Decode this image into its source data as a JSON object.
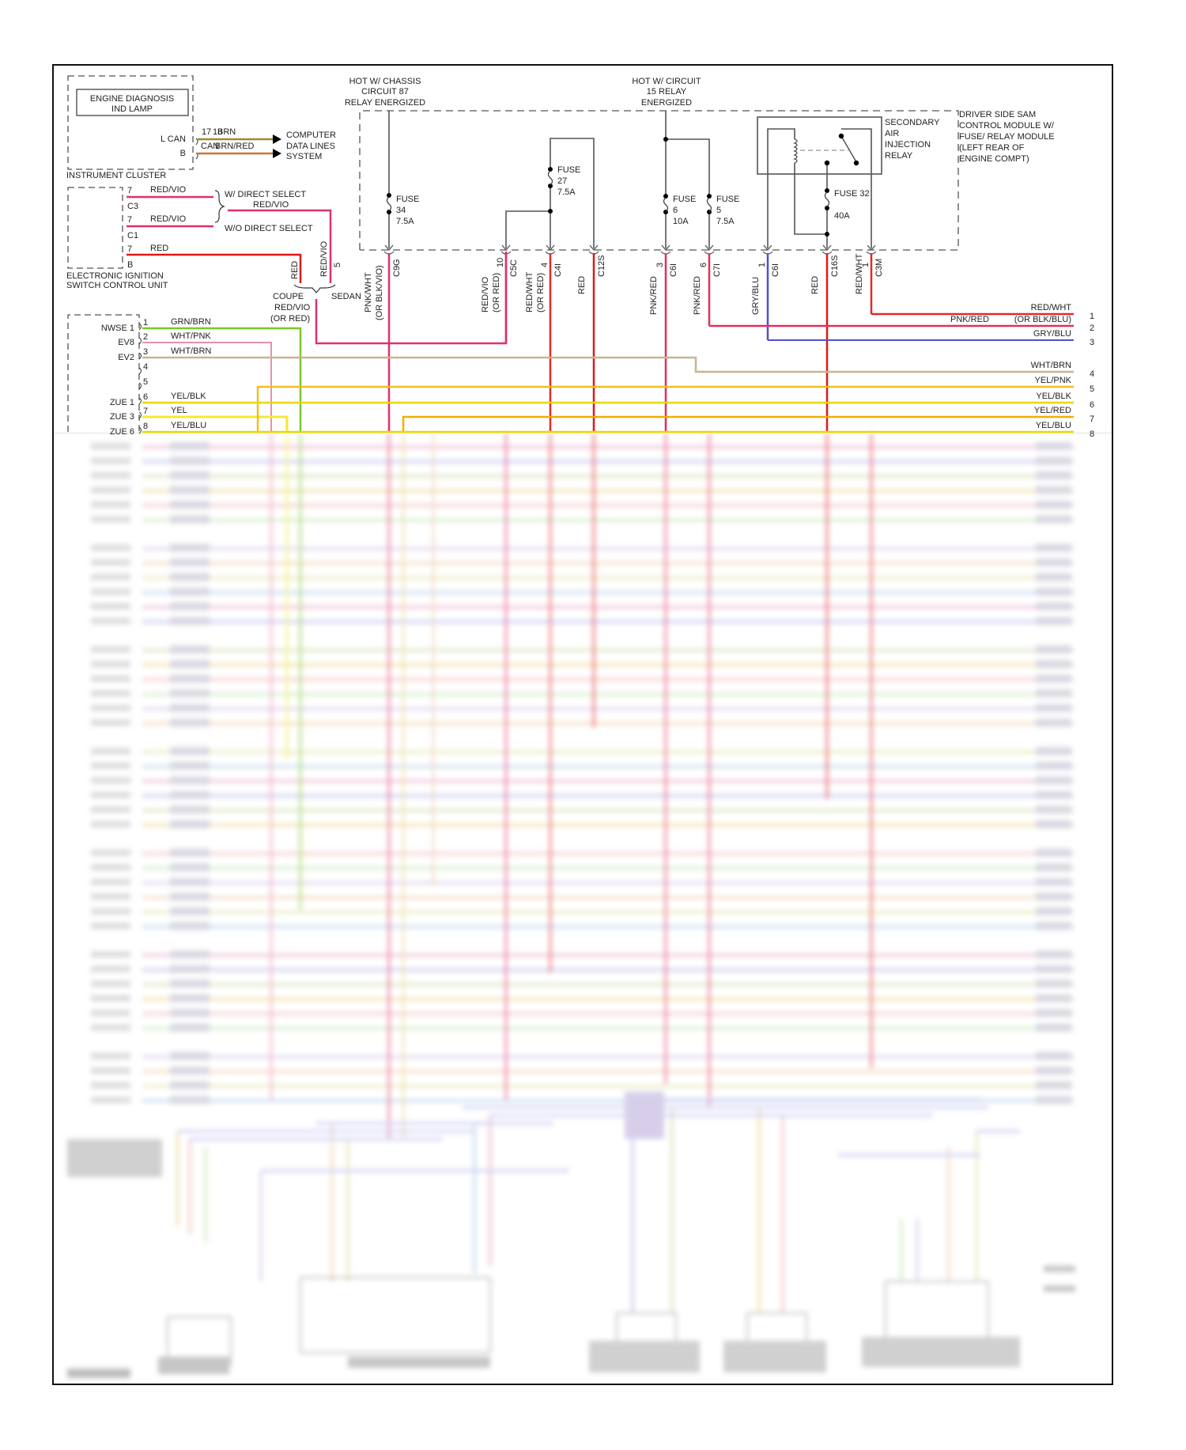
{
  "instrument_cluster": {
    "title": "INSTRUMENT CLUSTER",
    "lamp": [
      "ENGINE DIAGNOSIS",
      "IND LAMP"
    ],
    "pins": [
      {
        "label": "L CAN",
        "pin": "17",
        "wire": "BRN",
        "color": "#a08a2a"
      },
      {
        "label": "B",
        "pin": "18",
        "wire": "BRN/RED",
        "color": "#c8783a"
      }
    ],
    "pin_overlap_text": "CAN",
    "destination": [
      "COMPUTER",
      "DATA LINES",
      "SYSTEM"
    ]
  },
  "ignition_unit": {
    "title": [
      "ELECTRONIC IGNITION",
      "SWITCH CONTROL UNIT"
    ],
    "pins": [
      {
        "pin": "7",
        "conn": "C3",
        "wire": "RED/VIO",
        "color": "#e0306a"
      },
      {
        "pin": "7",
        "conn": "C1",
        "wire": "RED/VIO",
        "color": "#e0306a"
      },
      {
        "pin": "7",
        "conn": "B",
        "wire": "RED",
        "color": "#e01818"
      }
    ],
    "direct_select": {
      "with": "W/ DIRECT SELECT",
      "without": "W/O DIRECT SELECT",
      "wire": "RED/VIO"
    },
    "splice": {
      "left_wire": "RED",
      "right_wire": "RED/VIO",
      "right_pin": "5",
      "coupe": "COUPE",
      "sedan": "SEDAN",
      "out_wire": [
        "RED/VIO",
        "(OR RED)"
      ]
    }
  },
  "power_sources": [
    {
      "lines": [
        "HOT W/ CHASSIS",
        "CIRCUIT 87",
        "RELAY ENERGIZED"
      ]
    },
    {
      "lines": [
        "HOT W/ CIRCUIT",
        "15 RELAY",
        "ENERGIZED"
      ]
    }
  ],
  "fuses": [
    {
      "name": "FUSE",
      "num": "34",
      "rating": "7.5A"
    },
    {
      "name": "FUSE",
      "num": "27",
      "rating": "7.5A"
    },
    {
      "name": "FUSE",
      "num": "6",
      "rating": "10A"
    },
    {
      "name": "FUSE",
      "num": "5",
      "rating": "7.5A"
    },
    {
      "name": "FUSE 32",
      "num": "",
      "rating": "40A"
    }
  ],
  "relay": {
    "label": [
      "SECONDARY",
      "AIR",
      "INJECTION",
      "RELAY"
    ]
  },
  "sam_module": {
    "label": [
      "DRIVER SIDE SAM",
      "CONTROL MODULE W/",
      "FUSE/ RELAY MODULE",
      "(LEFT REAR OF",
      "ENGINE COMPT)"
    ]
  },
  "sam_connectors": [
    {
      "pin": "",
      "conn": "C9G",
      "wire": [
        "PNK/WHT",
        "(OR BLK/VIO)"
      ],
      "color": "#e0306a"
    },
    {
      "pin": "10",
      "conn": "C5C",
      "wire": [
        "RED/VIO",
        "(OR RED)"
      ],
      "color": "#e0306a"
    },
    {
      "pin": "4",
      "conn": "C4I",
      "wire": [
        "RED/WHT",
        "(OR RED)"
      ],
      "color": "#e02a2a"
    },
    {
      "pin": "",
      "conn": "C12S",
      "wire": [
        "RED"
      ],
      "color": "#e01818"
    },
    {
      "pin": "3",
      "conn": "C6I",
      "wire": [
        "PNK/RED"
      ],
      "color": "#e0305a"
    },
    {
      "pin": "6",
      "conn": "C7I",
      "wire": [
        "PNK/RED"
      ],
      "color": "#e0305a"
    },
    {
      "pin": "1",
      "conn": "C6I",
      "wire": [
        "GRY/BLU"
      ],
      "color": "#5050d0"
    },
    {
      "pin": "",
      "conn": "C16S",
      "wire": [
        "RED"
      ],
      "color": "#e01818"
    },
    {
      "pin": "1",
      "conn": "C3M",
      "wire": [
        "RED/WHT"
      ],
      "color": "#e02a2a"
    }
  ],
  "ecm_left_pins": [
    {
      "pin": "1",
      "label": "NWSE 1",
      "wire": "GRN/BRN",
      "color": "#7cc62a"
    },
    {
      "pin": "2",
      "label": "EV8",
      "wire": "WHT/PNK",
      "color": "#e890b0"
    },
    {
      "pin": "3",
      "label": "EV2",
      "wire": "WHT/BRN",
      "color": "#c8b490"
    },
    {
      "pin": "4",
      "label": "",
      "wire": "",
      "color": ""
    },
    {
      "pin": "5",
      "label": "",
      "wire": "",
      "color": ""
    },
    {
      "pin": "6",
      "label": "ZUE 1",
      "wire": "YEL/BLK",
      "color": "#e8d800"
    },
    {
      "pin": "7",
      "label": "ZUE 3",
      "wire": "YEL",
      "color": "#f4ea30"
    },
    {
      "pin": "8",
      "label": "ZUE 6",
      "wire": "YEL/BLU",
      "color": "#e8d800"
    }
  ],
  "right_pins": [
    {
      "pin": "1",
      "wire": "RED/WHT",
      "color": "#e02a2a"
    },
    {
      "pin": "2",
      "wire": "(OR BLK/BLU)",
      "extra": "PNK/RED",
      "color": "#e0305a"
    },
    {
      "pin": "3",
      "wire": "GRY/BLU",
      "color": "#5050d0"
    },
    {
      "pin": "4",
      "wire": "WHT/BRN",
      "color": "#c8b490"
    },
    {
      "pin": "5",
      "wire": "YEL/PNK",
      "color": "#f0c020"
    },
    {
      "pin": "6",
      "wire": "YEL/BLK",
      "color": "#e8d800"
    },
    {
      "pin": "7",
      "wire": "YEL/RED",
      "color": "#f0b000"
    },
    {
      "pin": "8",
      "wire": "YEL/BLU",
      "color": "#e8d800"
    }
  ],
  "colors": {
    "frame": "#111111",
    "box_line": "#555555",
    "text": "#222222"
  }
}
